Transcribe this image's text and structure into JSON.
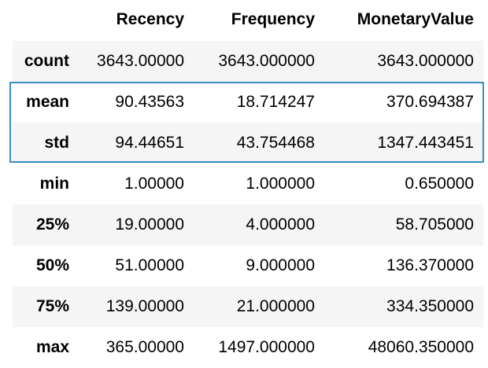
{
  "table": {
    "columns": [
      "",
      "Recency",
      "Frequency",
      "MonetaryValue"
    ],
    "rows": [
      {
        "label": "count",
        "values": [
          "3643.00000",
          "3643.000000",
          "3643.000000"
        ]
      },
      {
        "label": "mean",
        "values": [
          "90.43563",
          "18.714247",
          "370.694387"
        ]
      },
      {
        "label": "std",
        "values": [
          "94.44651",
          "43.754468",
          "1347.443451"
        ]
      },
      {
        "label": "min",
        "values": [
          "1.00000",
          "1.000000",
          "0.650000"
        ]
      },
      {
        "label": "25%",
        "values": [
          "19.00000",
          "4.000000",
          "58.705000"
        ]
      },
      {
        "label": "50%",
        "values": [
          "51.00000",
          "9.000000",
          "136.370000"
        ]
      },
      {
        "label": "75%",
        "values": [
          "139.00000",
          "21.000000",
          "334.350000"
        ]
      },
      {
        "label": "max",
        "values": [
          "365.00000",
          "1497.000000",
          "48060.350000"
        ]
      }
    ]
  },
  "highlight": {
    "color": "#3a8fc0",
    "rows": [
      "mean",
      "std"
    ]
  },
  "stripe_color": "#f5f5f5"
}
